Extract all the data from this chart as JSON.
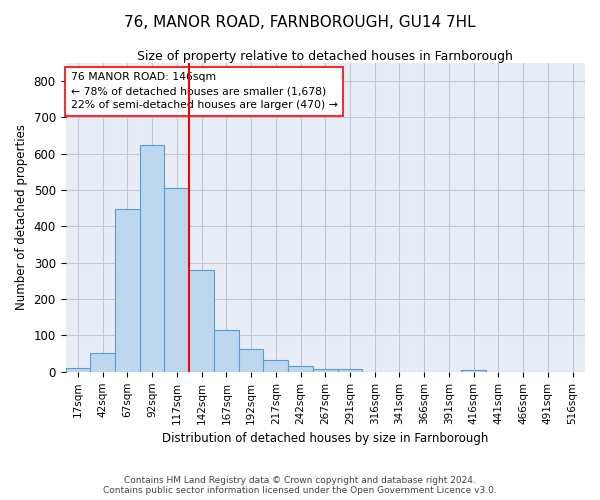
{
  "title": "76, MANOR ROAD, FARNBOROUGH, GU14 7HL",
  "subtitle": "Size of property relative to detached houses in Farnborough",
  "xlabel": "Distribution of detached houses by size in Farnborough",
  "ylabel": "Number of detached properties",
  "bin_labels": [
    "17sqm",
    "42sqm",
    "67sqm",
    "92sqm",
    "117sqm",
    "142sqm",
    "167sqm",
    "192sqm",
    "217sqm",
    "242sqm",
    "267sqm",
    "291sqm",
    "316sqm",
    "341sqm",
    "366sqm",
    "391sqm",
    "416sqm",
    "441sqm",
    "466sqm",
    "491sqm",
    "516sqm"
  ],
  "bar_values": [
    10,
    52,
    447,
    625,
    505,
    280,
    115,
    62,
    33,
    17,
    9,
    9,
    0,
    0,
    0,
    0,
    5,
    0,
    0,
    0,
    0
  ],
  "bar_color": "#BDD7EE",
  "bar_edge_color": "#5B9BD5",
  "vline_color": "red",
  "vline_label_title": "76 MANOR ROAD: 146sqm",
  "vline_label_line1": "← 78% of detached houses are smaller (1,678)",
  "vline_label_line2": "22% of semi-detached houses are larger (470) →",
  "annotation_box_color": "red",
  "ylim": [
    0,
    850
  ],
  "yticks": [
    0,
    100,
    200,
    300,
    400,
    500,
    600,
    700,
    800
  ],
  "grid_color": "#C0C8D8",
  "background_color": "#E8EDF5",
  "footer_line1": "Contains HM Land Registry data © Crown copyright and database right 2024.",
  "footer_line2": "Contains public sector information licensed under the Open Government Licence v3.0."
}
